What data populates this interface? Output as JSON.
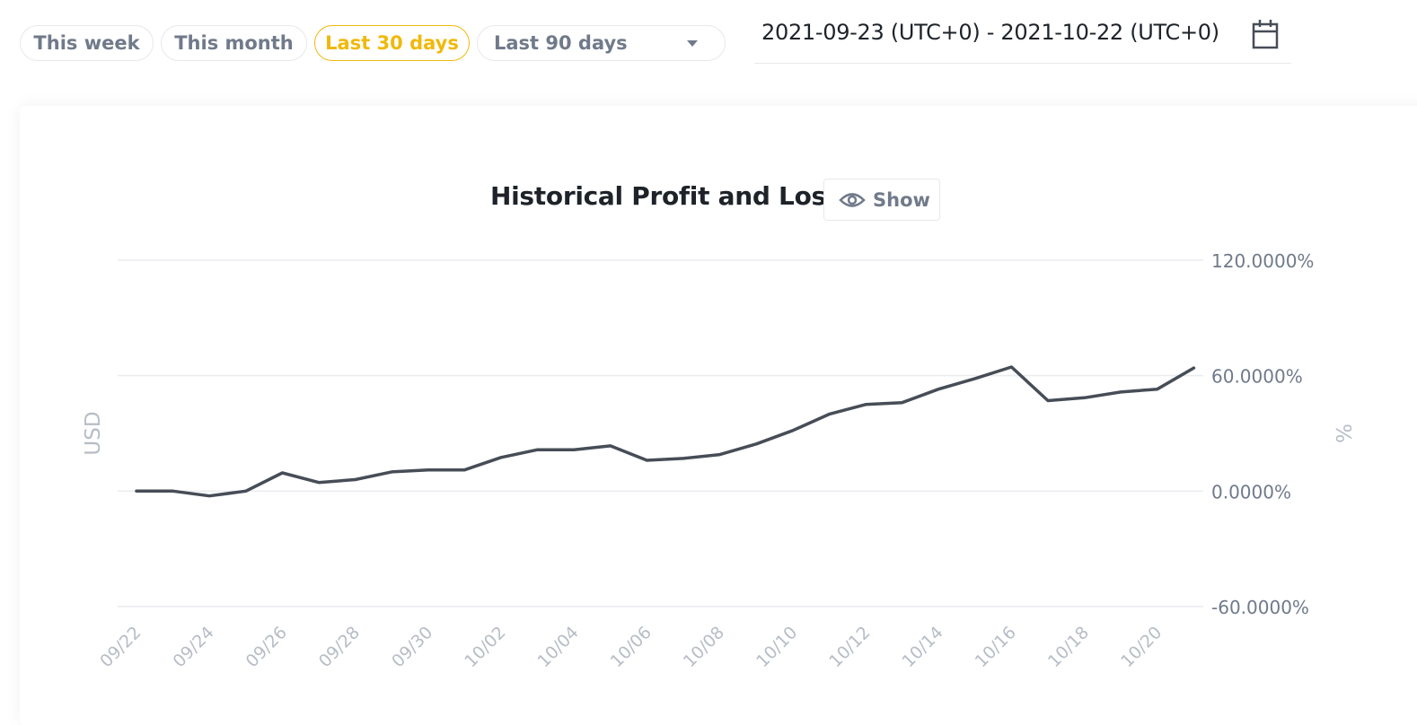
{
  "filters": {
    "this_week": "This week",
    "this_month": "This month",
    "last_30_days": "Last 30 days",
    "last_90_days": "Last 90 days"
  },
  "date_range": "2021-09-23 (UTC+0) - 2021-10-22 (UTC+0)",
  "show_button": "Show",
  "colors": {
    "accent": "#f0b90b",
    "line": "#474d57",
    "muted_text": "#707a8a",
    "grid": "#eaecef"
  },
  "chart_data": {
    "type": "line",
    "title": "Historical Profit and Loss",
    "ylabel_left": "USD",
    "ylabel_right": "%",
    "ylim": [
      -60,
      120
    ],
    "yticks": [
      "120.0000%",
      "60.0000%",
      "0.0000%",
      "-60.0000%"
    ],
    "ytick_values": [
      120,
      60,
      0,
      -60
    ],
    "grid": true,
    "x": [
      "09/22",
      "09/23",
      "09/24",
      "09/25",
      "09/26",
      "09/27",
      "09/28",
      "09/29",
      "09/30",
      "10/01",
      "10/02",
      "10/03",
      "10/04",
      "10/05",
      "10/06",
      "10/07",
      "10/08",
      "10/09",
      "10/10",
      "10/11",
      "10/12",
      "10/13",
      "10/14",
      "10/15",
      "10/16",
      "10/17",
      "10/18",
      "10/19",
      "10/20",
      "10/21"
    ],
    "xticks": [
      "09/22",
      "09/24",
      "09/26",
      "09/28",
      "09/30",
      "10/02",
      "10/04",
      "10/06",
      "10/08",
      "10/10",
      "10/12",
      "10/14",
      "10/16",
      "10/18",
      "10/20"
    ],
    "series": [
      {
        "values": [
          0,
          0,
          -2.5,
          0,
          9.5,
          4.5,
          6,
          10,
          11,
          11,
          17.5,
          21.5,
          21.5,
          23.5,
          16,
          17,
          19,
          24.5,
          31.5,
          40,
          45,
          46,
          53,
          58.5,
          64.5,
          47,
          48.5,
          51.5,
          53,
          64
        ]
      }
    ]
  }
}
